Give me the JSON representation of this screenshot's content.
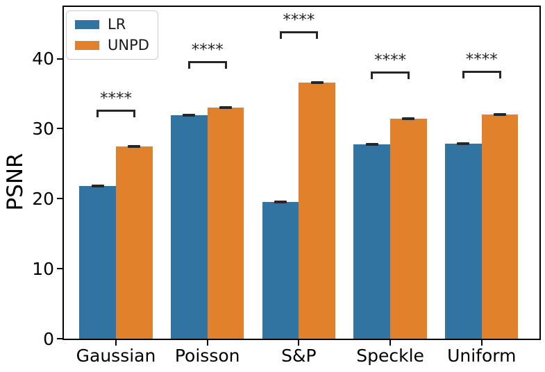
{
  "chart_data": {
    "type": "bar",
    "title": "",
    "xlabel": "",
    "ylabel": "PSNR",
    "categories": [
      "Gaussian",
      "Poisson",
      "S&P",
      "Speckle",
      "Uniform"
    ],
    "series": [
      {
        "name": "LR",
        "color": "#3274a1",
        "values": [
          21.8,
          31.9,
          19.5,
          27.8,
          27.9
        ],
        "errors": [
          0.15,
          0.15,
          0.12,
          0.15,
          0.12
        ]
      },
      {
        "name": "UNPD",
        "color": "#e1812c",
        "values": [
          27.5,
          33.0,
          36.6,
          31.4,
          32.0
        ],
        "errors": [
          0.12,
          0.15,
          0.15,
          0.15,
          0.12
        ]
      }
    ],
    "ylim": [
      0,
      47.4
    ],
    "yticks": [
      0,
      10,
      20,
      30,
      40
    ],
    "grid": false,
    "bar_width": 0.4,
    "legend_position": "upper-left",
    "error_color": "#262626",
    "annotation_color": "#262626",
    "annotations": [
      {
        "category": "Gaussian",
        "label": "****",
        "bracket_y": 32.7
      },
      {
        "category": "Poisson",
        "label": "****",
        "bracket_y": 39.7
      },
      {
        "category": "S&P",
        "label": "****",
        "bracket_y": 43.9
      },
      {
        "category": "Speckle",
        "label": "****",
        "bracket_y": 38.2
      },
      {
        "category": "Uniform",
        "label": "****",
        "bracket_y": 38.3
      }
    ]
  }
}
